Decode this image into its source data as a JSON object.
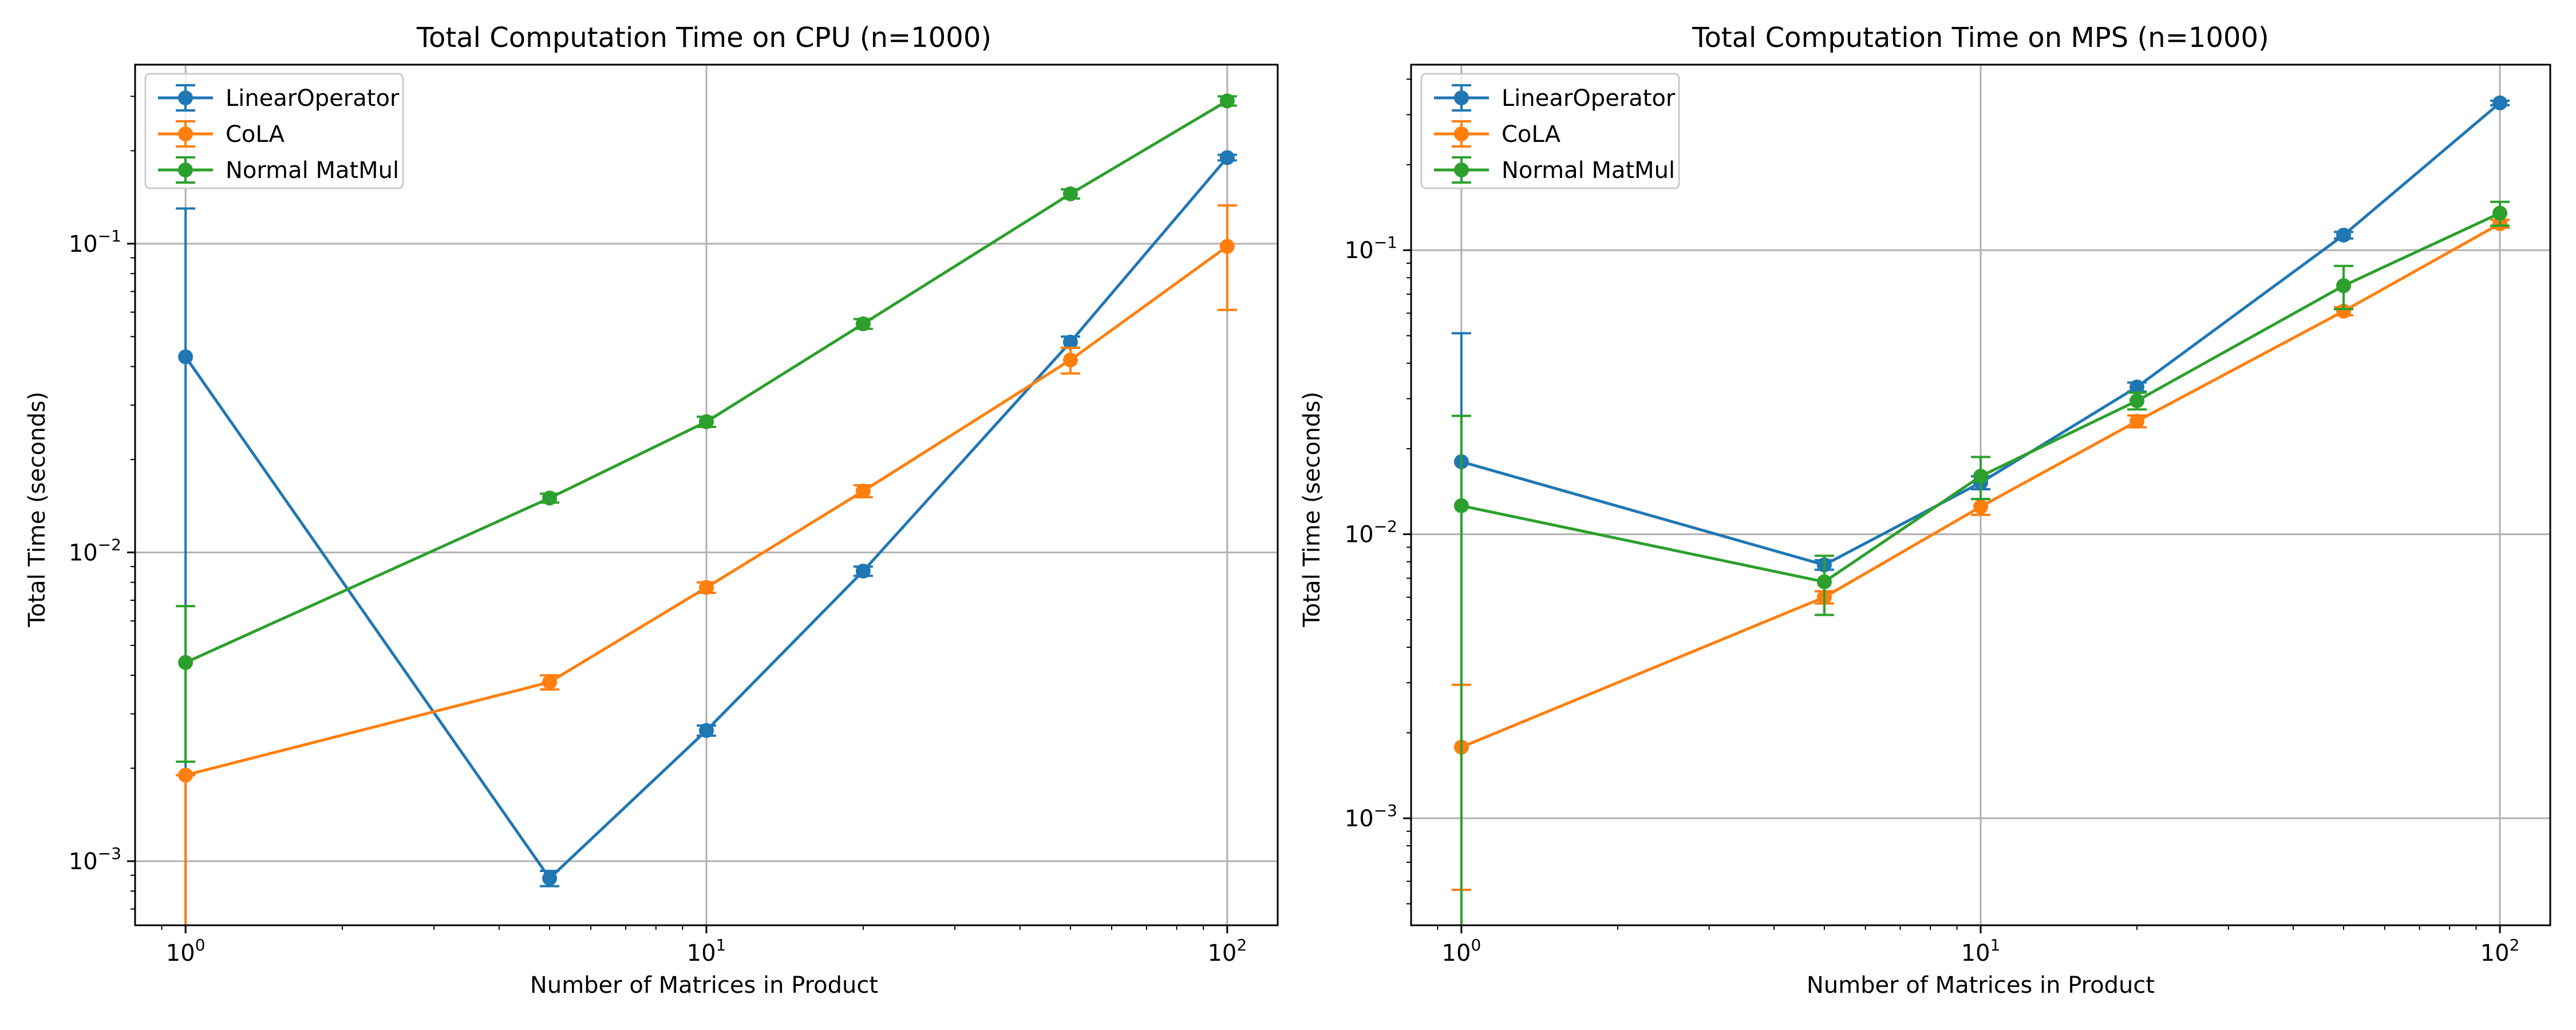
{
  "colors": {
    "LinearOperator": "#1f77b4",
    "CoLA": "#ff7f0e",
    "Normal MatMul": "#2ca02c",
    "grid": "#b0b0b0",
    "axes": "#000000"
  },
  "chart_data": [
    {
      "type": "line",
      "title": "Total Computation Time on CPU (n=1000)",
      "xlabel": "Number of Matrices in Product",
      "ylabel": "Total Time (seconds)",
      "xscale": "log",
      "yscale": "log",
      "xlim": [
        0.8,
        125
      ],
      "ylim": [
        0.00062,
        0.38
      ],
      "xticks": [
        {
          "value": 1,
          "base": "10",
          "exp": "0"
        },
        {
          "value": 10,
          "base": "10",
          "exp": "1"
        },
        {
          "value": 100,
          "base": "10",
          "exp": "2"
        }
      ],
      "yticks": [
        {
          "value": 0.001,
          "base": "10",
          "exp": "−3"
        },
        {
          "value": 0.01,
          "base": "10",
          "exp": "−2"
        },
        {
          "value": 0.1,
          "base": "10",
          "exp": "−1"
        }
      ],
      "grid": true,
      "legend_position": "top-left",
      "x": [
        1,
        5,
        10,
        20,
        50,
        100
      ],
      "series": [
        {
          "name": "LinearOperator",
          "values": [
            0.043,
            0.00088,
            0.00265,
            0.0087,
            0.048,
            0.19
          ],
          "err_low": [
            0.043,
            5e-05,
            0.0001,
            0.0003,
            0.002,
            0.004
          ],
          "err_high": [
            0.087,
            5e-05,
            0.0001,
            0.0003,
            0.002,
            0.004
          ]
        },
        {
          "name": "CoLA",
          "values": [
            0.0019,
            0.0038,
            0.0077,
            0.0158,
            0.042,
            0.098
          ],
          "err_low": [
            0.0019,
            0.0002,
            0.0003,
            0.0007,
            0.004,
            0.037
          ],
          "err_high": [
            0.0,
            0.0002,
            0.0003,
            0.0007,
            0.004,
            0.035
          ]
        },
        {
          "name": "Normal MatMul",
          "values": [
            0.0044,
            0.015,
            0.0265,
            0.055,
            0.145,
            0.29
          ],
          "err_low": [
            0.0023,
            0.0005,
            0.001,
            0.002,
            0.005,
            0.01
          ],
          "err_high": [
            0.0023,
            0.0005,
            0.001,
            0.002,
            0.005,
            0.01
          ]
        }
      ]
    },
    {
      "type": "line",
      "title": "Total Computation Time on MPS (n=1000)",
      "xlabel": "Number of Matrices in Product",
      "ylabel": "Total Time (seconds)",
      "xscale": "log",
      "yscale": "log",
      "xlim": [
        0.8,
        125
      ],
      "ylim": [
        0.00042,
        0.45
      ],
      "xticks": [
        {
          "value": 1,
          "base": "10",
          "exp": "0"
        },
        {
          "value": 10,
          "base": "10",
          "exp": "1"
        },
        {
          "value": 100,
          "base": "10",
          "exp": "2"
        }
      ],
      "yticks": [
        {
          "value": 0.001,
          "base": "10",
          "exp": "−3"
        },
        {
          "value": 0.01,
          "base": "10",
          "exp": "−2"
        },
        {
          "value": 0.1,
          "base": "10",
          "exp": "−1"
        }
      ],
      "grid": true,
      "legend_position": "top-left",
      "x": [
        1,
        5,
        10,
        20,
        50,
        100
      ],
      "series": [
        {
          "name": "LinearOperator",
          "values": [
            0.018,
            0.0078,
            0.0152,
            0.033,
            0.113,
            0.33
          ],
          "err_low": [
            0.018,
            0.0003,
            0.0008,
            0.0012,
            0.003,
            0.006
          ],
          "err_high": [
            0.033,
            0.0003,
            0.0008,
            0.0012,
            0.003,
            0.006
          ]
        },
        {
          "name": "CoLA",
          "values": [
            0.00178,
            0.006,
            0.0125,
            0.025,
            0.061,
            0.124
          ],
          "err_low": [
            0.00122,
            0.0003,
            0.0008,
            0.0012,
            0.002,
            0.004
          ],
          "err_high": [
            0.00117,
            0.0003,
            0.0008,
            0.0012,
            0.002,
            0.004
          ]
        },
        {
          "name": "Normal MatMul",
          "values": [
            0.0126,
            0.0068,
            0.016,
            0.0295,
            0.075,
            0.135
          ],
          "err_low": [
            0.0126,
            0.0016,
            0.0027,
            0.002,
            0.013,
            0.013
          ],
          "err_high": [
            0.0135,
            0.0016,
            0.0027,
            0.002,
            0.013,
            0.013
          ]
        }
      ]
    }
  ]
}
